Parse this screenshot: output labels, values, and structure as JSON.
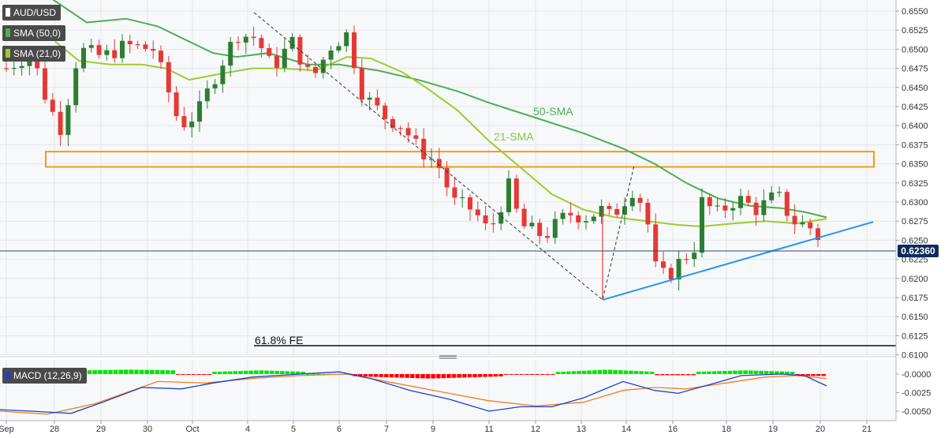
{
  "chart_data": [
    {
      "type": "candlestick",
      "symbol": "AUD/USD",
      "x_dates": [
        "Sep",
        "28",
        "29",
        "30",
        "Oct",
        "4",
        "5",
        "6",
        "7",
        "9",
        "11",
        "12",
        "13",
        "14",
        "16",
        "18",
        "19",
        "20",
        "21"
      ],
      "y_ticks": [
        "0.6550",
        "0.6525",
        "0.6500",
        "0.6475",
        "0.6450",
        "0.6425",
        "0.6400",
        "0.6375",
        "0.6350",
        "0.6325",
        "0.6300",
        "0.6275",
        "0.6250",
        "0.6225",
        "0.6200",
        "0.6175",
        "0.6150",
        "0.6125",
        "0.6100"
      ],
      "ylim": [
        0.61,
        0.656
      ],
      "last_price": "0.62360",
      "last_price_value": 0.6236,
      "indicators": [
        {
          "label": "SMA (50,0)",
          "color": "#4caf50"
        },
        {
          "label": "SMA (21,0)",
          "color": "#9ccc2e"
        }
      ],
      "annotations": {
        "sma50": "50-SMA",
        "sma21": "21-SMA",
        "fib": "61.8% FE"
      },
      "fib_level": 0.6112,
      "resistance_zone": [
        0.6346,
        0.6366
      ],
      "support_line": [
        [
          13.5,
          0.6172
        ],
        [
          21.0,
          0.6275
        ]
      ],
      "fe_legs": [
        [
          4.2,
          0.6548
        ],
        [
          13.5,
          0.6172
        ],
        [
          14.2,
          0.6348
        ]
      ]
    },
    {
      "type": "bar",
      "label": "MACD (12,26,9)",
      "y_ticks": [
        "-0.0000",
        "-0.0025",
        "-0.0050"
      ],
      "ylim": [
        -0.0056,
        0.0012
      ]
    }
  ],
  "colors": {
    "up": "#2e7d32",
    "down": "#e53935",
    "sma50": "#4caf50",
    "sma21": "#9ccc2e",
    "trend": "#2196f3",
    "zone": "#f39c12",
    "macd_line": "#1e40c8",
    "signal_line": "#f07f1e",
    "hist_up": "#00e600",
    "hist_down": "#ff0000"
  }
}
